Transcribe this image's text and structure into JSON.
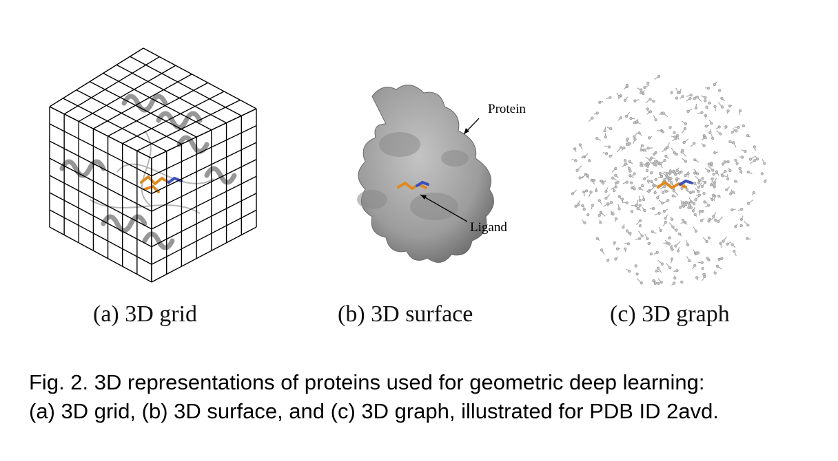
{
  "subfigures": [
    {
      "caption": "(a) 3D grid",
      "type": "3D grid"
    },
    {
      "caption": "(b) 3D surface",
      "type": "3D surface",
      "annotations": {
        "protein": "Protein",
        "ligand": "Ligand"
      }
    },
    {
      "caption": "(c) 3D graph",
      "type": "3D graph"
    }
  ],
  "caption": {
    "line1": "Fig. 2. 3D representations of proteins used for geometric deep learning:",
    "line2": "(a) 3D grid, (b) 3D surface, and (c) 3D graph, illustrated for PDB ID 2avd."
  },
  "colors": {
    "ligand": "#e08a1e",
    "ligand_n": "#3a4fc0",
    "protein_gray": "#a8a8a8",
    "surface": "#9a9a9a"
  }
}
